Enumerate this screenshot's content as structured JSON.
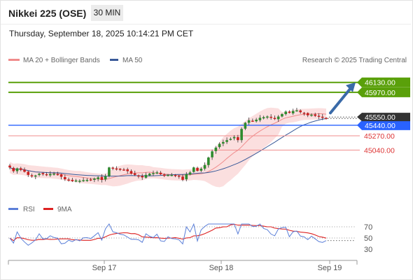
{
  "header": {
    "title": "Nikkei 225 (OSE)",
    "timeframe": "30 MIN",
    "datetime": "Thursday, September 18, 2025 10:14:21 PM CET"
  },
  "colors": {
    "bollinger": "#f08c8c",
    "ma50": "#3a5a99",
    "resistance": "#5aa00a",
    "support": "#f08c8c",
    "pivot": "#2962ff",
    "arrow": "#3a6aa8",
    "candle_up": "#2e8b2e",
    "candle_down": "#cc1f1f",
    "rsi": "#5b7fd8",
    "rsi_ma": "#dd2222",
    "current_label_bg": "#333333"
  },
  "chart_data": [
    {
      "type": "candlestick",
      "legend": {
        "items": [
          {
            "name": "MA 20 + Bollinger Bands",
            "color": "#f08c8c"
          },
          {
            "name": "MA 50",
            "color": "#3a5a99"
          }
        ],
        "placement": "top-left"
      },
      "credit": "Research © 2025 Trading Central",
      "x_ticks": [
        "Sep 17",
        "Sep 18",
        "Sep 19"
      ],
      "y_range": [
        44300,
        46330
      ],
      "current_price": "45550.00",
      "levels": [
        {
          "value": 46130,
          "label": "46130.00",
          "kind": "resistance"
        },
        {
          "value": 45970,
          "label": "45970.00",
          "kind": "resistance"
        },
        {
          "value": 45440,
          "label": "45440.00",
          "kind": "pivot"
        },
        {
          "value": 45270,
          "label": "45270.00",
          "kind": "support"
        },
        {
          "value": 45040,
          "label": "45040.00",
          "kind": "support"
        }
      ],
      "target_arrow": {
        "from": 45570,
        "to": 46130
      },
      "series": {
        "close": [
          44760,
          44700,
          44745,
          44720,
          44690,
          44640,
          44620,
          44630,
          44660,
          44650,
          44640,
          44655,
          44660,
          44650,
          44610,
          44570,
          44555,
          44540,
          44550,
          44545,
          44555,
          44560,
          44565,
          44580,
          44600,
          44560,
          44620,
          44760,
          44740,
          44730,
          44725,
          44720,
          44700,
          44660,
          44640,
          44620,
          44600,
          44640,
          44660,
          44670,
          44680,
          44650,
          44625,
          44640,
          44640,
          44630,
          44615,
          44560,
          44650,
          44680,
          44760,
          44705,
          44740,
          44800,
          44920,
          45020,
          45080,
          45140,
          45170,
          45200,
          45220,
          45250,
          45200,
          45380,
          45480,
          45520,
          45510,
          45530,
          45560,
          45570,
          45580,
          45560,
          45540,
          45580,
          45620,
          45660,
          45640,
          45670,
          45680,
          45650,
          45630,
          45600,
          45610,
          45590,
          45580,
          45560,
          45550
        ]
      }
    },
    {
      "type": "line",
      "legend": {
        "items": [
          {
            "name": "RSI",
            "color": "#5b7fd8"
          },
          {
            "name": "9MA",
            "color": "#dd2222"
          }
        ],
        "placement": "top-left"
      },
      "y_ticks": [
        70,
        50,
        30
      ],
      "y_range": [
        15,
        85
      ]
    }
  ]
}
